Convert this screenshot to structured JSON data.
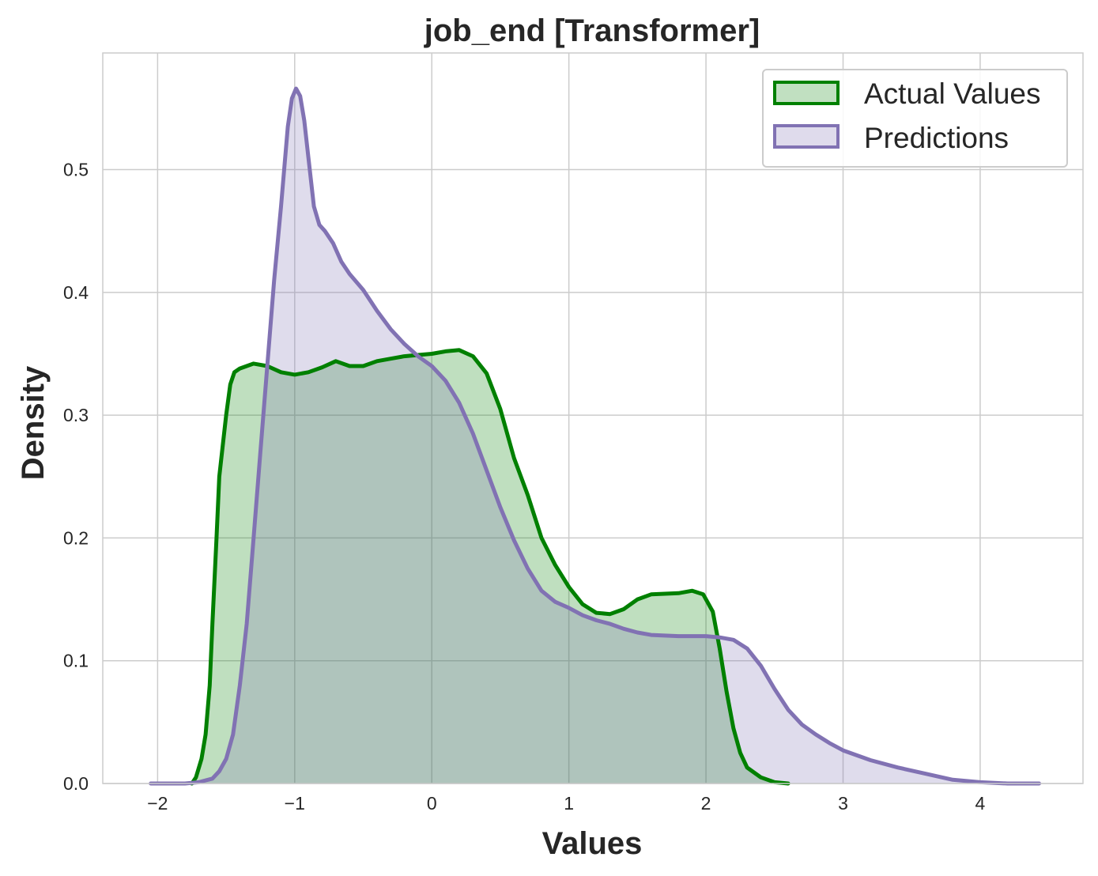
{
  "chart_data": {
    "type": "area",
    "title": "job_end [Transformer]",
    "xlabel": "Values",
    "ylabel": "Density",
    "xlim": [
      -2.4,
      4.75
    ],
    "ylim": [
      0.0,
      0.595
    ],
    "x_ticks": [
      -2,
      -1,
      0,
      1,
      2,
      3,
      4
    ],
    "x_tick_labels": [
      "−2",
      "−1",
      "0",
      "1",
      "2",
      "3",
      "4"
    ],
    "y_ticks": [
      0.0,
      0.1,
      0.2,
      0.3,
      0.4,
      0.5
    ],
    "y_tick_labels": [
      "0.0",
      "0.1",
      "0.2",
      "0.3",
      "0.4",
      "0.5"
    ],
    "grid": true,
    "legend_position": "top-right",
    "series": [
      {
        "name": "Actual Values",
        "line_color": "#008000",
        "fill_color": "#c1e0c1",
        "points": [
          [
            -1.75,
            0.0
          ],
          [
            -1.72,
            0.005
          ],
          [
            -1.68,
            0.02
          ],
          [
            -1.65,
            0.04
          ],
          [
            -1.62,
            0.08
          ],
          [
            -1.6,
            0.13
          ],
          [
            -1.57,
            0.2
          ],
          [
            -1.55,
            0.25
          ],
          [
            -1.52,
            0.28
          ],
          [
            -1.5,
            0.3
          ],
          [
            -1.47,
            0.325
          ],
          [
            -1.44,
            0.335
          ],
          [
            -1.4,
            0.338
          ],
          [
            -1.3,
            0.342
          ],
          [
            -1.2,
            0.34
          ],
          [
            -1.1,
            0.335
          ],
          [
            -1.0,
            0.333
          ],
          [
            -0.9,
            0.335
          ],
          [
            -0.8,
            0.339
          ],
          [
            -0.7,
            0.344
          ],
          [
            -0.6,
            0.34
          ],
          [
            -0.5,
            0.34
          ],
          [
            -0.4,
            0.344
          ],
          [
            -0.3,
            0.346
          ],
          [
            -0.2,
            0.348
          ],
          [
            -0.1,
            0.349
          ],
          [
            0.0,
            0.35
          ],
          [
            0.1,
            0.352
          ],
          [
            0.2,
            0.353
          ],
          [
            0.3,
            0.348
          ],
          [
            0.4,
            0.334
          ],
          [
            0.5,
            0.305
          ],
          [
            0.6,
            0.265
          ],
          [
            0.7,
            0.235
          ],
          [
            0.8,
            0.2
          ],
          [
            0.9,
            0.178
          ],
          [
            1.0,
            0.16
          ],
          [
            1.1,
            0.146
          ],
          [
            1.2,
            0.139
          ],
          [
            1.3,
            0.138
          ],
          [
            1.4,
            0.142
          ],
          [
            1.5,
            0.15
          ],
          [
            1.6,
            0.154
          ],
          [
            1.8,
            0.155
          ],
          [
            1.9,
            0.157
          ],
          [
            1.98,
            0.154
          ],
          [
            2.05,
            0.14
          ],
          [
            2.1,
            0.11
          ],
          [
            2.15,
            0.075
          ],
          [
            2.2,
            0.045
          ],
          [
            2.25,
            0.025
          ],
          [
            2.3,
            0.013
          ],
          [
            2.4,
            0.005
          ],
          [
            2.5,
            0.001
          ],
          [
            2.6,
            0.0
          ]
        ]
      },
      {
        "name": "Predictions",
        "line_color": "#8172b3",
        "fill_color": "#dfdbec",
        "points": [
          [
            -2.05,
            0.0
          ],
          [
            -1.8,
            0.0
          ],
          [
            -1.7,
            0.001
          ],
          [
            -1.6,
            0.004
          ],
          [
            -1.55,
            0.01
          ],
          [
            -1.5,
            0.02
          ],
          [
            -1.45,
            0.04
          ],
          [
            -1.4,
            0.08
          ],
          [
            -1.35,
            0.13
          ],
          [
            -1.3,
            0.2
          ],
          [
            -1.25,
            0.27
          ],
          [
            -1.2,
            0.34
          ],
          [
            -1.15,
            0.41
          ],
          [
            -1.1,
            0.47
          ],
          [
            -1.05,
            0.535
          ],
          [
            -1.02,
            0.558
          ],
          [
            -0.99,
            0.566
          ],
          [
            -0.96,
            0.56
          ],
          [
            -0.93,
            0.54
          ],
          [
            -0.9,
            0.51
          ],
          [
            -0.86,
            0.47
          ],
          [
            -0.82,
            0.455
          ],
          [
            -0.78,
            0.45
          ],
          [
            -0.72,
            0.44
          ],
          [
            -0.66,
            0.425
          ],
          [
            -0.6,
            0.415
          ],
          [
            -0.5,
            0.402
          ],
          [
            -0.4,
            0.385
          ],
          [
            -0.3,
            0.37
          ],
          [
            -0.2,
            0.358
          ],
          [
            -0.1,
            0.348
          ],
          [
            0.0,
            0.34
          ],
          [
            0.1,
            0.328
          ],
          [
            0.2,
            0.31
          ],
          [
            0.3,
            0.285
          ],
          [
            0.4,
            0.255
          ],
          [
            0.5,
            0.225
          ],
          [
            0.6,
            0.198
          ],
          [
            0.7,
            0.175
          ],
          [
            0.8,
            0.157
          ],
          [
            0.9,
            0.148
          ],
          [
            1.0,
            0.143
          ],
          [
            1.1,
            0.137
          ],
          [
            1.2,
            0.133
          ],
          [
            1.3,
            0.13
          ],
          [
            1.4,
            0.126
          ],
          [
            1.5,
            0.123
          ],
          [
            1.6,
            0.121
          ],
          [
            1.8,
            0.12
          ],
          [
            2.0,
            0.12
          ],
          [
            2.1,
            0.119
          ],
          [
            2.2,
            0.117
          ],
          [
            2.3,
            0.11
          ],
          [
            2.4,
            0.096
          ],
          [
            2.5,
            0.077
          ],
          [
            2.6,
            0.06
          ],
          [
            2.7,
            0.048
          ],
          [
            2.8,
            0.04
          ],
          [
            2.9,
            0.033
          ],
          [
            3.0,
            0.027
          ],
          [
            3.2,
            0.019
          ],
          [
            3.4,
            0.013
          ],
          [
            3.6,
            0.008
          ],
          [
            3.8,
            0.003
          ],
          [
            4.0,
            0.001
          ],
          [
            4.2,
            0.0
          ],
          [
            4.43,
            0.0
          ]
        ]
      }
    ]
  }
}
